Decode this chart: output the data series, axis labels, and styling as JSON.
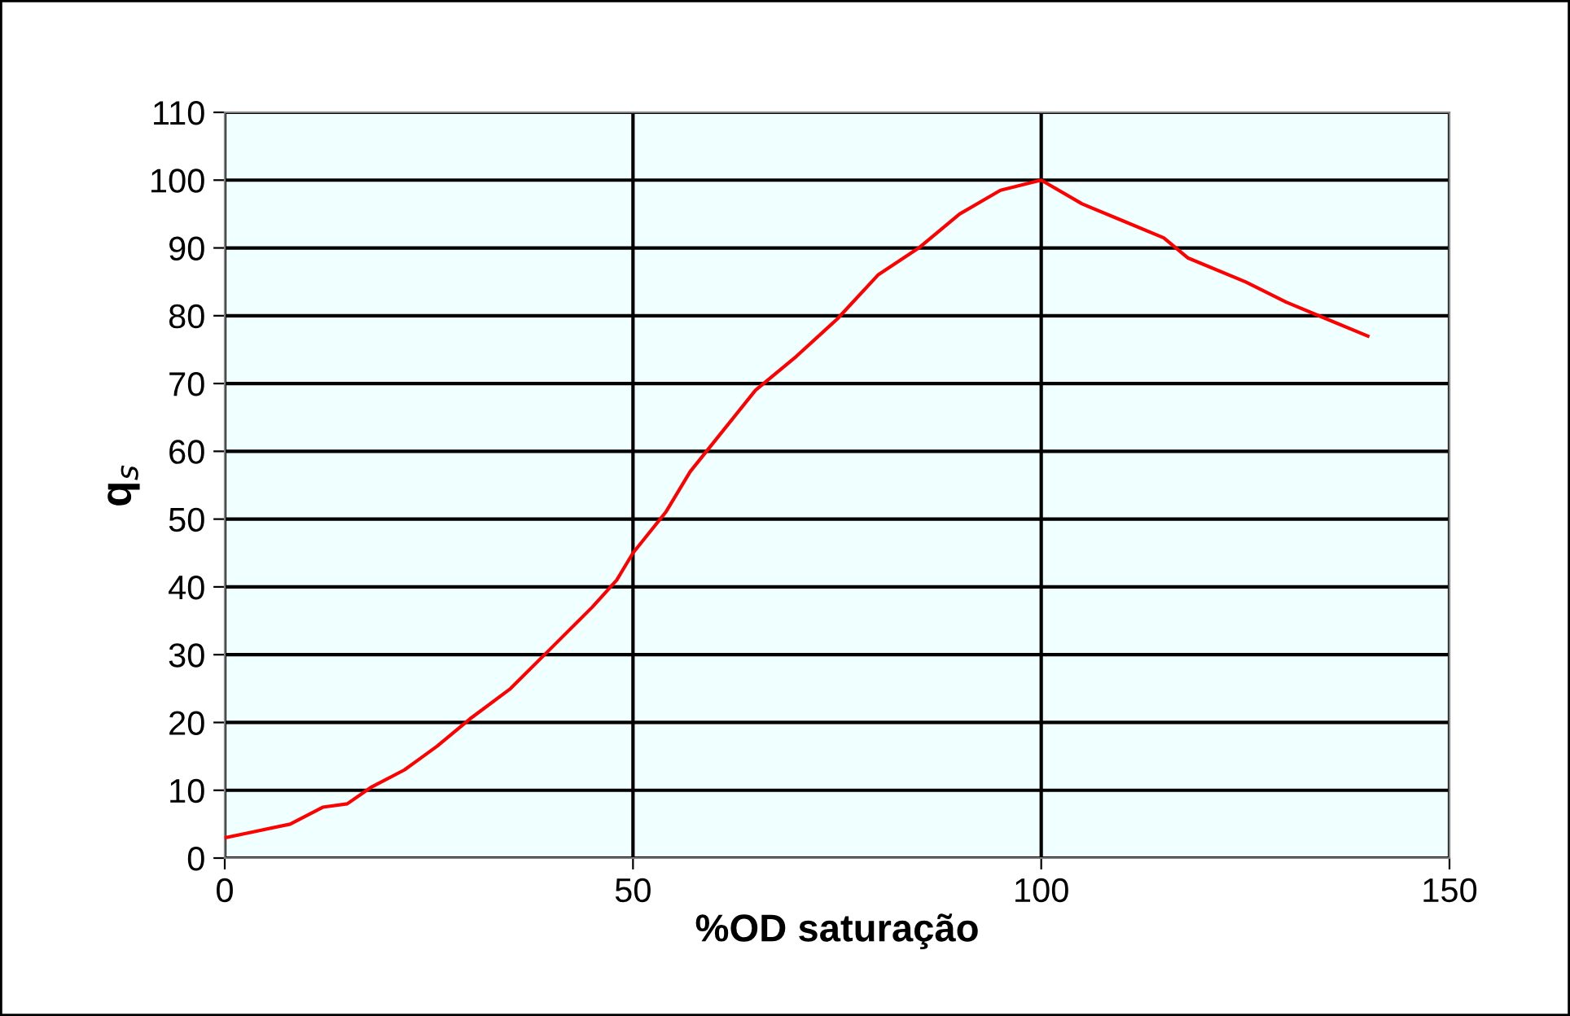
{
  "chart_data": {
    "type": "line",
    "xlabel": "%OD saturação",
    "ylabel": "q$_{s}$",
    "x": [
      0,
      4,
      8,
      12,
      15,
      18,
      22,
      26,
      30,
      35,
      40,
      45,
      48,
      50,
      54,
      57,
      61,
      65,
      70,
      75,
      80,
      85,
      90,
      95,
      100,
      105,
      110,
      115,
      118,
      125,
      130,
      135,
      140
    ],
    "series": [
      {
        "color": "#ff0000",
        "values": [
          3,
          4,
          5,
          7.5,
          8,
          10.5,
          13,
          16.5,
          20.5,
          25,
          31,
          37,
          41,
          45,
          51,
          57,
          63,
          69,
          74,
          79.5,
          86,
          90,
          95,
          98.5,
          100,
          96.5,
          94,
          91.5,
          88.5,
          85,
          82,
          79.5,
          77
        ]
      }
    ],
    "xlim": [
      0,
      150
    ],
    "xticks": [
      0,
      50,
      100,
      150
    ],
    "ylim": [
      0,
      110
    ],
    "yticks": [
      0,
      10,
      20,
      30,
      40,
      50,
      60,
      70,
      80,
      90,
      100,
      110
    ],
    "grid": true,
    "legend": false,
    "marker": "none",
    "line_style": "solid"
  }
}
